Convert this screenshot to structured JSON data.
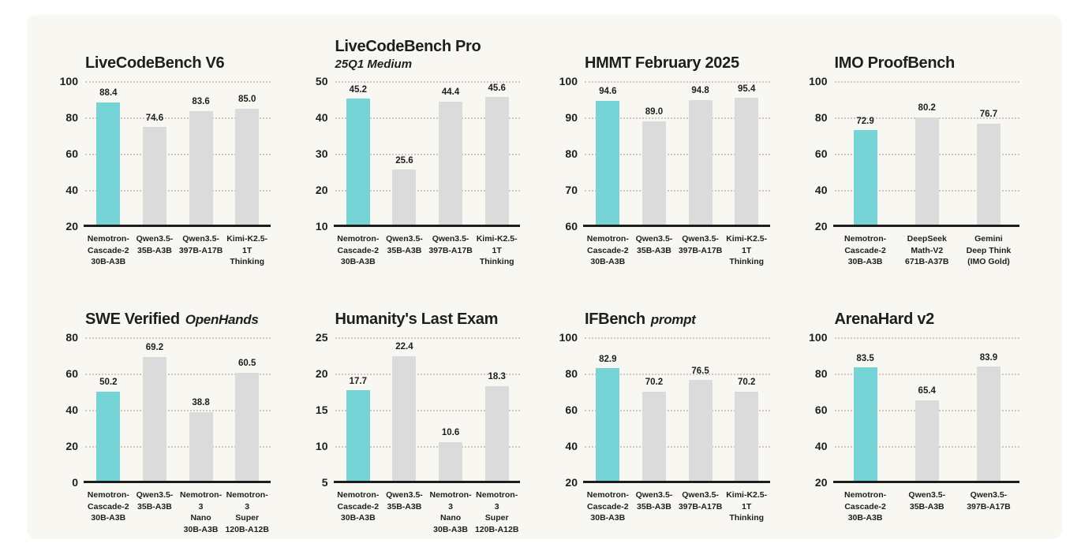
{
  "page": {
    "background": "#ffffff",
    "panel_background": "#f9f7f2"
  },
  "colors": {
    "highlight_bar": "#76d3d6",
    "default_bar": "#dbdbdb",
    "text": "#1e1e1e",
    "gridline": "#ccc8c1",
    "axis": "#1d1d1d"
  },
  "chart_data": [
    {
      "type": "bar",
      "title": "LiveCodeBench V6",
      "title_suffix": "",
      "subtitle": "",
      "ylim": [
        20,
        100
      ],
      "yticks": [
        100,
        80,
        60,
        40,
        20
      ],
      "categories": [
        "Nemotron-\nCascade-2\n30B-A3B",
        "Qwen3.5-\n35B-A3B",
        "Qwen3.5-\n397B-A17B",
        "Kimi-K2.5-1T\nThinking"
      ],
      "values": [
        88.4,
        74.6,
        83.6,
        85.0
      ],
      "highlight_index": 0,
      "grid": "dotted-horizontal",
      "legend": "none"
    },
    {
      "type": "bar",
      "title": "LiveCodeBench Pro",
      "title_suffix": "",
      "subtitle": "25Q1 Medium",
      "ylim": [
        10,
        50
      ],
      "yticks": [
        50,
        40,
        30,
        20,
        10
      ],
      "categories": [
        "Nemotron-\nCascade-2\n30B-A3B",
        "Qwen3.5-\n35B-A3B",
        "Qwen3.5-\n397B-A17B",
        "Kimi-K2.5-1T\nThinking"
      ],
      "values": [
        45.2,
        25.6,
        44.4,
        45.6
      ],
      "highlight_index": 0,
      "grid": "dotted-horizontal",
      "legend": "none"
    },
    {
      "type": "bar",
      "title": "HMMT February 2025",
      "title_suffix": "",
      "subtitle": "",
      "ylim": [
        60,
        100
      ],
      "yticks": [
        100,
        90,
        80,
        70,
        60
      ],
      "categories": [
        "Nemotron-\nCascade-2\n30B-A3B",
        "Qwen3.5-\n35B-A3B",
        "Qwen3.5-\n397B-A17B",
        "Kimi-K2.5-1T\nThinking"
      ],
      "values": [
        94.6,
        89.0,
        94.8,
        95.4
      ],
      "highlight_index": 0,
      "grid": "dotted-horizontal",
      "legend": "none"
    },
    {
      "type": "bar",
      "title": "IMO ProofBench",
      "title_suffix": "",
      "subtitle": "",
      "ylim": [
        20,
        100
      ],
      "yticks": [
        100,
        80,
        60,
        40,
        20
      ],
      "categories": [
        "Nemotron-\nCascade-2\n30B-A3B",
        "DeepSeek\nMath-V2\n671B-A37B",
        "Gemini\nDeep Think\n(IMO Gold)"
      ],
      "values": [
        72.9,
        80.2,
        76.7
      ],
      "highlight_index": 0,
      "grid": "dotted-horizontal",
      "legend": "none"
    },
    {
      "type": "bar",
      "title": "SWE Verified",
      "title_suffix": "OpenHands",
      "subtitle": "",
      "ylim": [
        0,
        80
      ],
      "yticks": [
        80,
        60,
        40,
        20,
        0
      ],
      "categories": [
        "Nemotron-\nCascade-2\n30B-A3B",
        "Qwen3.5-\n35B-A3B",
        "Nemotron-3\nNano\n30B-A3B",
        "Nemotron-3\nSuper\n120B-A12B"
      ],
      "values": [
        50.2,
        69.2,
        38.8,
        60.5
      ],
      "highlight_index": 0,
      "grid": "dotted-horizontal",
      "legend": "none"
    },
    {
      "type": "bar",
      "title": "Humanity's Last Exam",
      "title_suffix": "",
      "subtitle": "",
      "ylim": [
        5,
        25
      ],
      "yticks": [
        25,
        20,
        15,
        10,
        5
      ],
      "categories": [
        "Nemotron-\nCascade-2\n30B-A3B",
        "Qwen3.5-\n35B-A3B",
        "Nemotron-3\nNano\n30B-A3B",
        "Nemotron-3\nSuper\n120B-A12B"
      ],
      "values": [
        17.7,
        22.4,
        10.6,
        18.3
      ],
      "highlight_index": 0,
      "grid": "dotted-horizontal",
      "legend": "none"
    },
    {
      "type": "bar",
      "title": "IFBench",
      "title_suffix": "prompt",
      "subtitle": "",
      "ylim": [
        20,
        100
      ],
      "yticks": [
        100,
        80,
        60,
        40,
        20
      ],
      "categories": [
        "Nemotron-\nCascade-2\n30B-A3B",
        "Qwen3.5-\n35B-A3B",
        "Qwen3.5-\n397B-A17B",
        "Kimi-K2.5-1T\nThinking"
      ],
      "values": [
        82.9,
        70.2,
        76.5,
        70.2
      ],
      "highlight_index": 0,
      "grid": "dotted-horizontal",
      "legend": "none"
    },
    {
      "type": "bar",
      "title": "ArenaHard v2",
      "title_suffix": "",
      "subtitle": "",
      "ylim": [
        20,
        100
      ],
      "yticks": [
        100,
        80,
        60,
        40,
        20
      ],
      "categories": [
        "Nemotron-\nCascade-2\n30B-A3B",
        "Qwen3.5-\n35B-A3B",
        "Qwen3.5-\n397B-A17B"
      ],
      "values": [
        83.5,
        65.4,
        83.9
      ],
      "highlight_index": 0,
      "grid": "dotted-horizontal",
      "legend": "none"
    }
  ]
}
